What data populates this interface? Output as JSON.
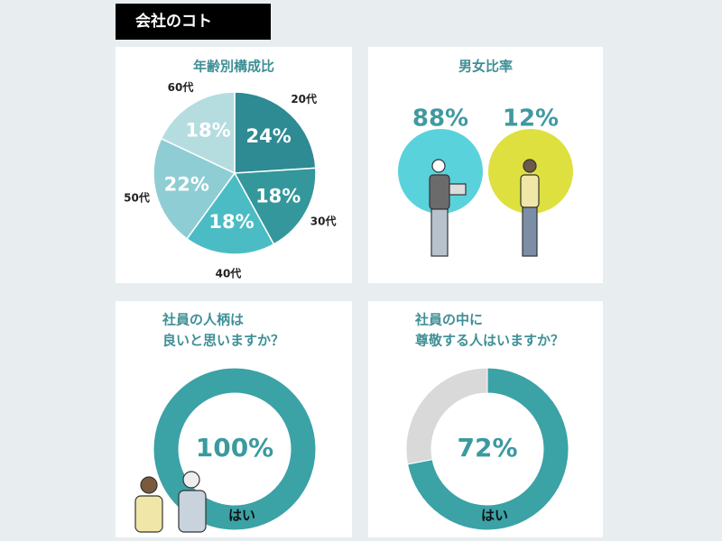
{
  "header": {
    "title": "会社のコト"
  },
  "chart_data": [
    {
      "type": "pie",
      "title": "年齢別構成比",
      "categories": [
        "20代",
        "30代",
        "40代",
        "50代",
        "60代"
      ],
      "values": [
        24,
        18,
        18,
        22,
        18
      ],
      "value_labels": [
        "24%",
        "18%",
        "18%",
        "22%",
        "18%"
      ],
      "colors": [
        "#2e8a93",
        "#34979c",
        "#4bbcc4",
        "#8fcdd4",
        "#b5dde0"
      ]
    },
    {
      "type": "circles",
      "title": "男女比率",
      "values": [
        88,
        12
      ],
      "value_labels": [
        "88%",
        "12%"
      ],
      "colors": [
        "#5ad2dc",
        "#dee040"
      ]
    },
    {
      "type": "donut",
      "title": [
        "社員の人柄は",
        "良いと思いますか？"
      ],
      "categories": [
        "はい"
      ],
      "values": [
        100
      ],
      "value_labels": [
        "100%"
      ],
      "colors": [
        "#3ba2a6"
      ]
    },
    {
      "type": "donut",
      "title": [
        "社員の中に",
        "尊敬する人はいますか？"
      ],
      "categories": [
        "はい",
        null
      ],
      "values": [
        72,
        28
      ],
      "value_labels": [
        "72%",
        null
      ],
      "colors": [
        "#3ba2a6",
        "#d9d9d9"
      ]
    }
  ]
}
